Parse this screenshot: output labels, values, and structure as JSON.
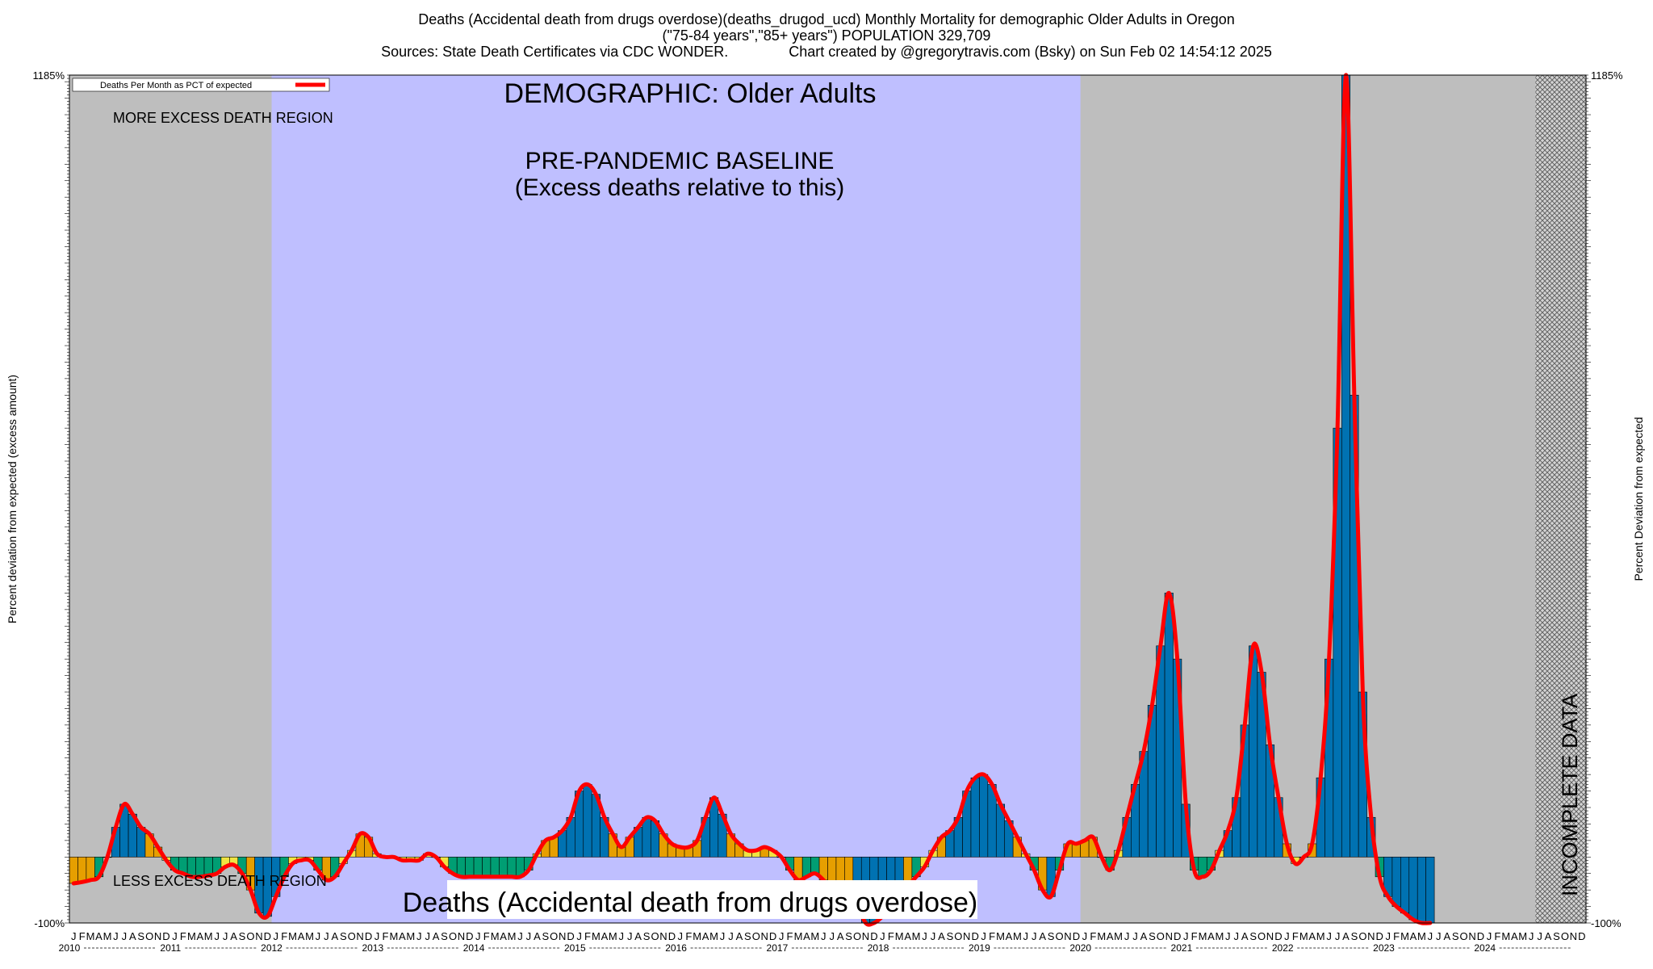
{
  "header": {
    "line1": "Deaths (Accidental death from drugs overdose)(deaths_drugod_ucd) Monthly Mortality for demographic Older Adults in Oregon",
    "line2": "(\"75-84 years\",\"85+ years\") POPULATION 329,709",
    "line3": "Sources: State Death Certificates via CDC WONDER.               Chart created by @gregorytravis.com (Bsky) on Sun Feb 02 14:54:12 2025"
  },
  "chart_data": {
    "type": "bar",
    "title": "DEMOGRAPHIC: Older Adults",
    "bottom_label": "Deaths (Accidental death from drugs overdose)",
    "legend": {
      "label": "Deaths Per Month as PCT of expected",
      "color": "#ff0000",
      "placement": "top-left"
    },
    "ylabel_left": "Percent deviation from expected (excess amount)",
    "ylabel_right": "Percent Deviation from expected",
    "y_unit": "percent deviation from expected",
    "ylim": [
      -100,
      1185
    ],
    "y_tick_labels_visible": {
      "top": "1185%",
      "bottom": "-100%"
    },
    "region_labels": {
      "more": "MORE EXCESS DEATH REGION",
      "less": "LESS EXCESS DEATH REGION",
      "baseline_title": "PRE-PANDEMIC BASELINE",
      "baseline_subtitle": "(Excess deaths relative to this)",
      "incomplete": "INCOMPLETE DATA"
    },
    "baseline_period": {
      "start": "2012-01",
      "end": "2019-12"
    },
    "incomplete_period": {
      "start": "2024-07",
      "end": "2024-12"
    },
    "month_letters": [
      "J",
      "F",
      "M",
      "A",
      "M",
      "J",
      "J",
      "A",
      "S",
      "O",
      "N",
      "D"
    ],
    "years": [
      "2010",
      "2011",
      "2012",
      "2013",
      "2014",
      "2015",
      "2016",
      "2017",
      "2018",
      "2019",
      "2020",
      "2021",
      "2022",
      "2023",
      "2024"
    ],
    "start_month": "2010-01",
    "colors": {
      "bar_yellow": "#f0e442",
      "bar_orange": "#e69f00",
      "bar_green": "#009e73",
      "bar_blue": "#0072b2",
      "line": "#ff0000",
      "gray_region": "#bebebe",
      "baseline_region": "#bfbfff"
    },
    "values": [
      -40,
      -38,
      -35,
      -30,
      0,
      45,
      80,
      65,
      45,
      35,
      15,
      -5,
      -20,
      -25,
      -30,
      -30,
      -28,
      -25,
      -15,
      -12,
      -25,
      -50,
      -85,
      -90,
      -60,
      -30,
      -10,
      -5,
      -5,
      -20,
      -35,
      -30,
      -10,
      10,
      35,
      30,
      5,
      0,
      0,
      -5,
      -5,
      -5,
      5,
      0,
      -15,
      -25,
      -30,
      -30,
      -30,
      -30,
      -30,
      -30,
      -30,
      -30,
      -20,
      5,
      25,
      30,
      40,
      60,
      100,
      110,
      95,
      60,
      35,
      15,
      30,
      45,
      60,
      55,
      35,
      20,
      15,
      15,
      25,
      60,
      90,
      65,
      35,
      20,
      10,
      10,
      15,
      10,
      0,
      -20,
      -35,
      -30,
      -25,
      -35,
      -50,
      -50,
      -50,
      -70,
      -100,
      -100,
      -90,
      -75,
      -60,
      -45,
      -30,
      -15,
      10,
      30,
      40,
      60,
      100,
      120,
      125,
      110,
      80,
      55,
      30,
      5,
      -20,
      -50,
      -60,
      -20,
      20,
      20,
      25,
      30,
      0,
      -20,
      10,
      60,
      110,
      160,
      230,
      320,
      400,
      300,
      80,
      -20,
      -30,
      -20,
      10,
      40,
      90,
      200,
      320,
      280,
      170,
      90,
      20,
      -10,
      0,
      20,
      120,
      300,
      650,
      1185,
      700,
      250,
      60,
      -30,
      -60,
      -75,
      -85,
      -95,
      -100,
      -100
    ]
  }
}
